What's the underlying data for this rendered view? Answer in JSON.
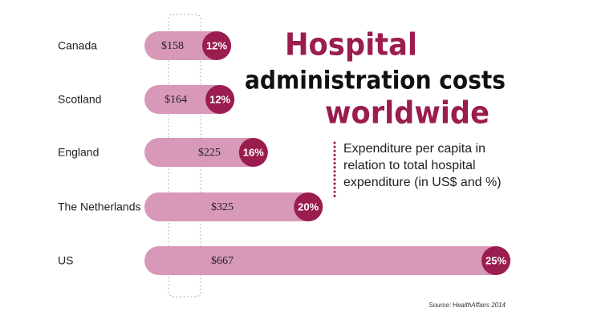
{
  "chart_data": {
    "type": "bar",
    "title": [
      "Hospital",
      "administration costs",
      "worldwide"
    ],
    "subtitle": [
      "Expenditure per capita in",
      "relation to total hospital",
      "expenditure (in US$ and %)"
    ],
    "source": "Source: HealthAffairs 2014",
    "categories": [
      "Canada",
      "Scotland",
      "England",
      "The Netherlands",
      "US"
    ],
    "values": [
      158,
      164,
      225,
      325,
      667
    ],
    "value_labels": [
      "$158",
      "$164",
      "$225",
      "$325",
      "$667"
    ],
    "shares": [
      12,
      12,
      16,
      20,
      25
    ],
    "share_labels": [
      "12%",
      "12%",
      "16%",
      "20%",
      "25%"
    ],
    "color": "#d898b7",
    "share_color": "#9b1c4e"
  }
}
